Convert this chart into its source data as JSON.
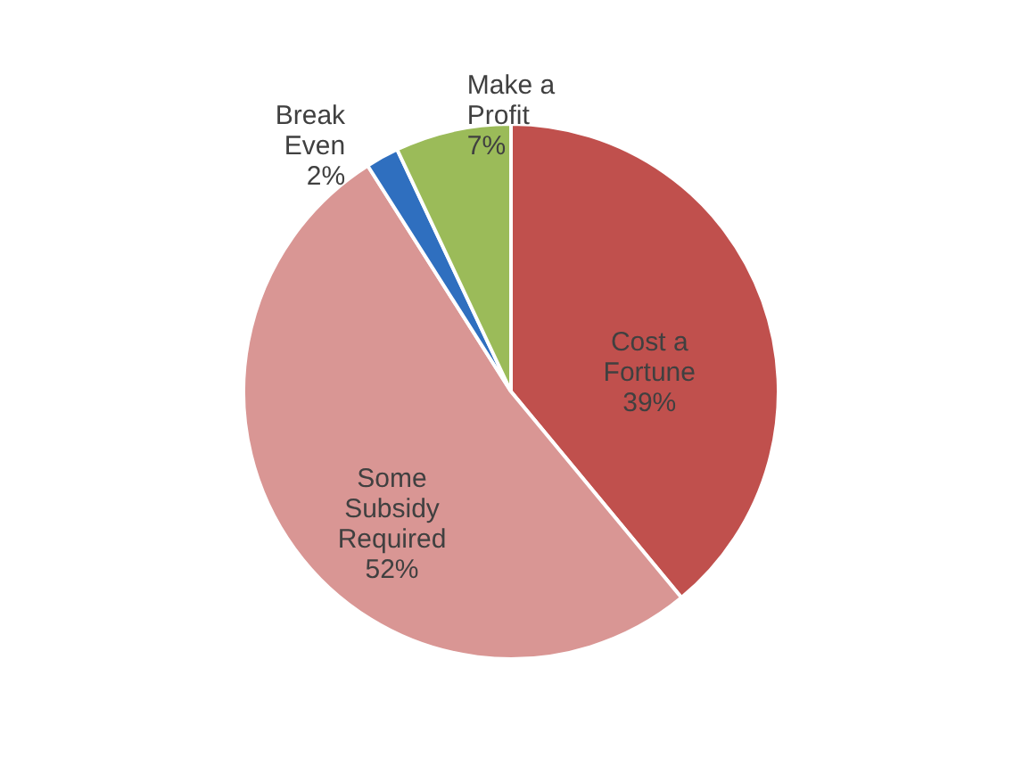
{
  "chart_data": {
    "type": "pie",
    "categories": [
      "Cost a\nFortune",
      "Some\nSubsidy\nRequired",
      "Break\nEven",
      "Make a\nProfit"
    ],
    "values": [
      39,
      52,
      2,
      7
    ],
    "value_labels": [
      "39%",
      "52%",
      "2%",
      "7%"
    ],
    "colors": [
      "#c0504d",
      "#d99694",
      "#2f6fbf",
      "#9bbb59"
    ],
    "legend": false
  }
}
